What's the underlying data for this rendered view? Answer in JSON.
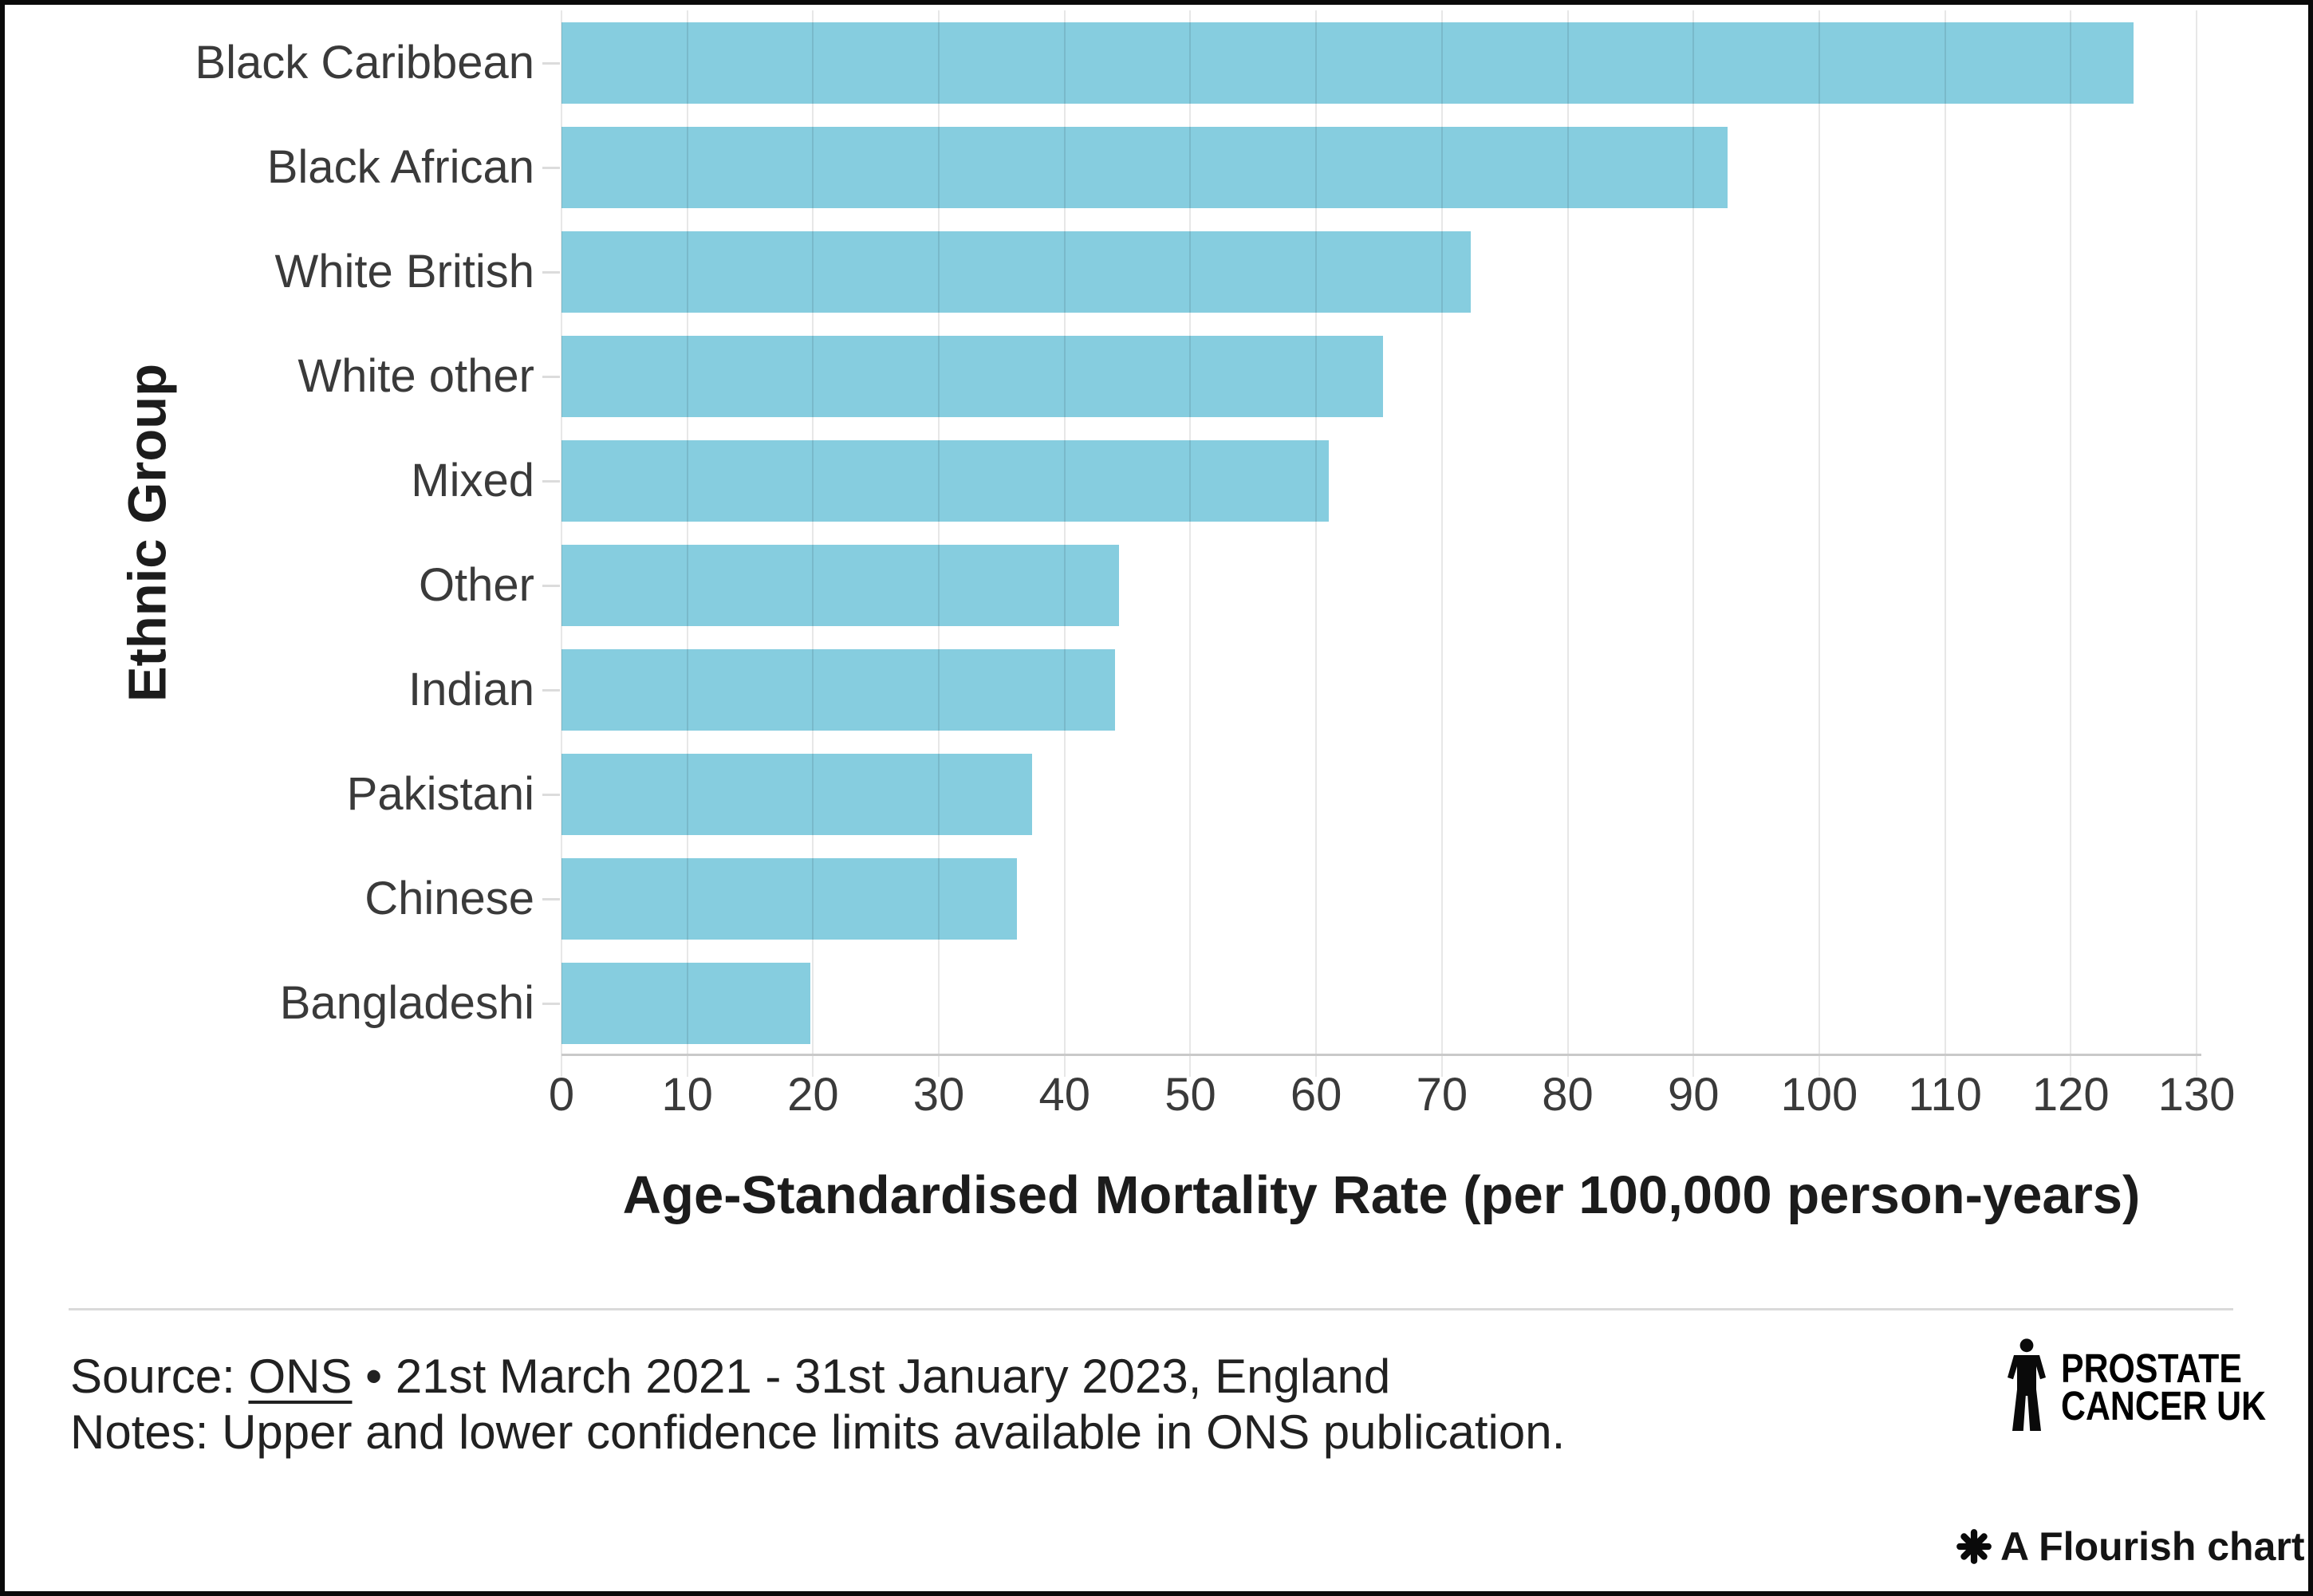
{
  "chart_data": {
    "type": "bar",
    "orientation": "horizontal",
    "title": "",
    "xlabel": "Age-Standardised Mortality Rate (per 100,000 person-years)",
    "ylabel": "Ethnic Group",
    "categories": [
      "Black Caribbean",
      "Black African",
      "White British",
      "White other",
      "Mixed",
      "Other",
      "Indian",
      "Pakistani",
      "Chinese",
      "Bangladeshi"
    ],
    "values": [
      125.0,
      92.7,
      72.3,
      65.3,
      61.0,
      44.3,
      44.0,
      37.4,
      36.2,
      19.8
    ],
    "xlim": [
      0,
      130
    ],
    "x_ticks": [
      0,
      10,
      20,
      30,
      40,
      50,
      60,
      70,
      80,
      90,
      100,
      110,
      120,
      130
    ],
    "grid": true,
    "legend": "none",
    "bar_color": "#86CDDF",
    "gridline_color": "#e6e6e6",
    "label_color": "#3a3a3a",
    "axis_title_color": "#1c1c1c"
  },
  "footer": {
    "source_prefix": "Source: ",
    "source_link": "ONS",
    "source_rest": " • 21st March 2021 - 31st January 2023, England",
    "notes": "Notes: Upper and lower confidence limits available in ONS publication.",
    "logo": {
      "icon": "man-of-men",
      "line1": "PROSTATE",
      "line2": "CANCER UK"
    },
    "credit": {
      "icon": "flourish-asterisk",
      "label": "A Flourish chart"
    }
  }
}
